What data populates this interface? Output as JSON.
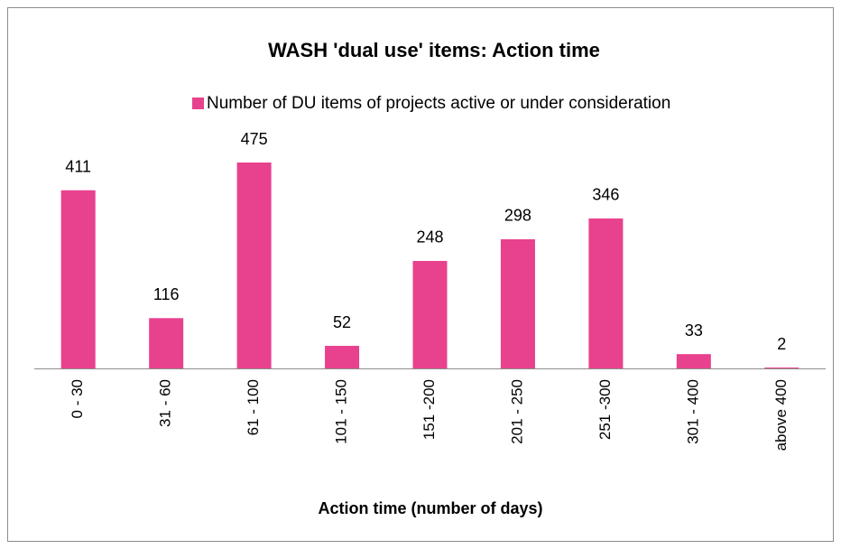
{
  "chart_data": {
    "type": "bar",
    "title": "WASH 'dual use' items: Action time",
    "x_label": "Action time (number of days)",
    "categories": [
      "0 - 30",
      "31 - 60",
      "61 - 100",
      "101 - 150",
      "151 -200",
      "201 - 250",
      "251 -300",
      "301 - 400",
      "above 400"
    ],
    "series": [
      {
        "name": "Number of DU items of projects active or under consideration",
        "color": "#e8418e",
        "values": [
          411,
          116,
          475,
          52,
          248,
          298,
          346,
          33,
          2
        ]
      }
    ],
    "legend": "top",
    "grid": false
  }
}
